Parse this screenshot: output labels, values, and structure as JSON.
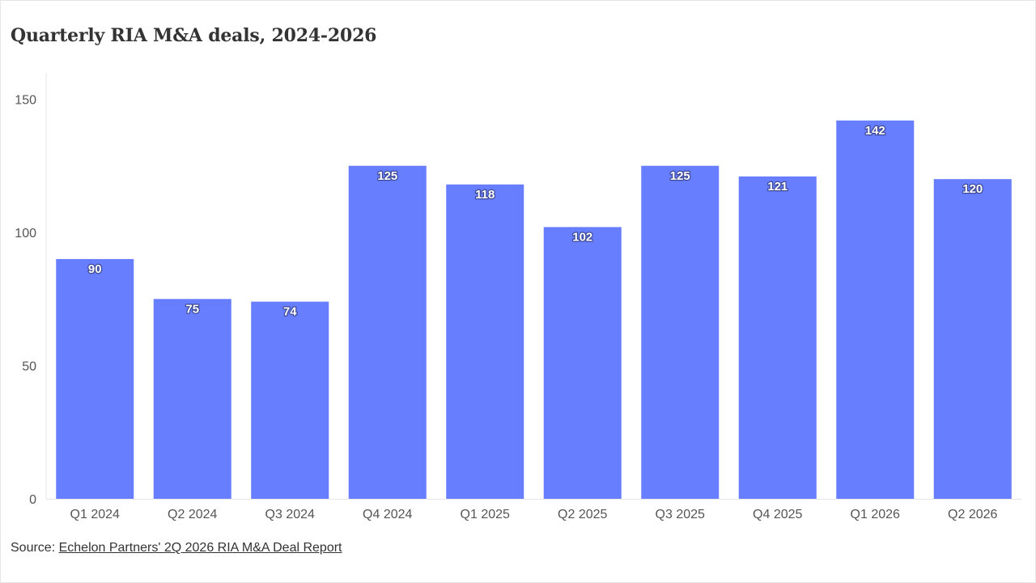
{
  "title": "Quarterly RIA M&A deals, 2024-2026",
  "source": {
    "prefix": "Source: ",
    "link_text": "Echelon Partners' 2Q 2026 RIA M&A Deal Report"
  },
  "colors": {
    "bar": "#667eff",
    "axis_text": "#555555",
    "grid": "#e4e4e4",
    "label": "#ffffff"
  },
  "chart_data": {
    "type": "bar",
    "categories": [
      "Q1 2024",
      "Q2 2024",
      "Q3 2024",
      "Q4 2024",
      "Q1 2025",
      "Q2 2025",
      "Q3 2025",
      "Q4 2025",
      "Q1 2026",
      "Q2 2026"
    ],
    "values": [
      90,
      75,
      74,
      125,
      118,
      102,
      125,
      121,
      142,
      120
    ],
    "title": "Quarterly RIA M&A deals, 2024-2026",
    "xlabel": "",
    "ylabel": "",
    "ylim": [
      0,
      160
    ],
    "yticks": [
      0,
      50,
      100,
      150
    ],
    "grid": false,
    "data_labels": true,
    "legend": "none"
  }
}
